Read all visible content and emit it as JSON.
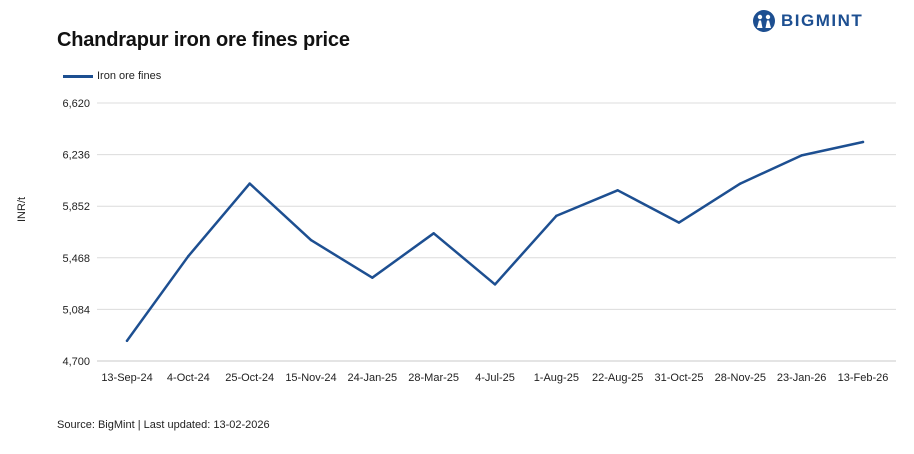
{
  "brand": {
    "name": "BIGMINT",
    "color": "#1d4f91",
    "icon": "bigmint-logo-icon"
  },
  "source_note": "Source: BigMint | Last updated: 13-02-2026",
  "chart_data": {
    "type": "line",
    "title": "Chandrapur iron ore fines price",
    "xlabel": "",
    "ylabel": "INR/t",
    "categories": [
      "13-Sep-24",
      "4-Oct-24",
      "25-Oct-24",
      "15-Nov-24",
      "24-Jan-25",
      "28-Mar-25",
      "4-Jul-25",
      "1-Aug-25",
      "22-Aug-25",
      "31-Oct-25",
      "28-Nov-25",
      "23-Jan-26",
      "13-Feb-26"
    ],
    "series": [
      {
        "name": "Iron ore fines",
        "color": "#1d4f91",
        "values": [
          4850,
          5480,
          6020,
          5600,
          5320,
          5650,
          5270,
          5780,
          5970,
          5730,
          6020,
          6230,
          6330
        ]
      }
    ],
    "ylim": [
      4700,
      6620
    ],
    "yticks": [
      4700,
      5084,
      5468,
      5852,
      6236,
      6620
    ],
    "ytick_labels": [
      "4,700",
      "5,084",
      "5,468",
      "5,852",
      "6,236",
      "6,620"
    ],
    "grid": true,
    "legend_position": "top-left"
  }
}
